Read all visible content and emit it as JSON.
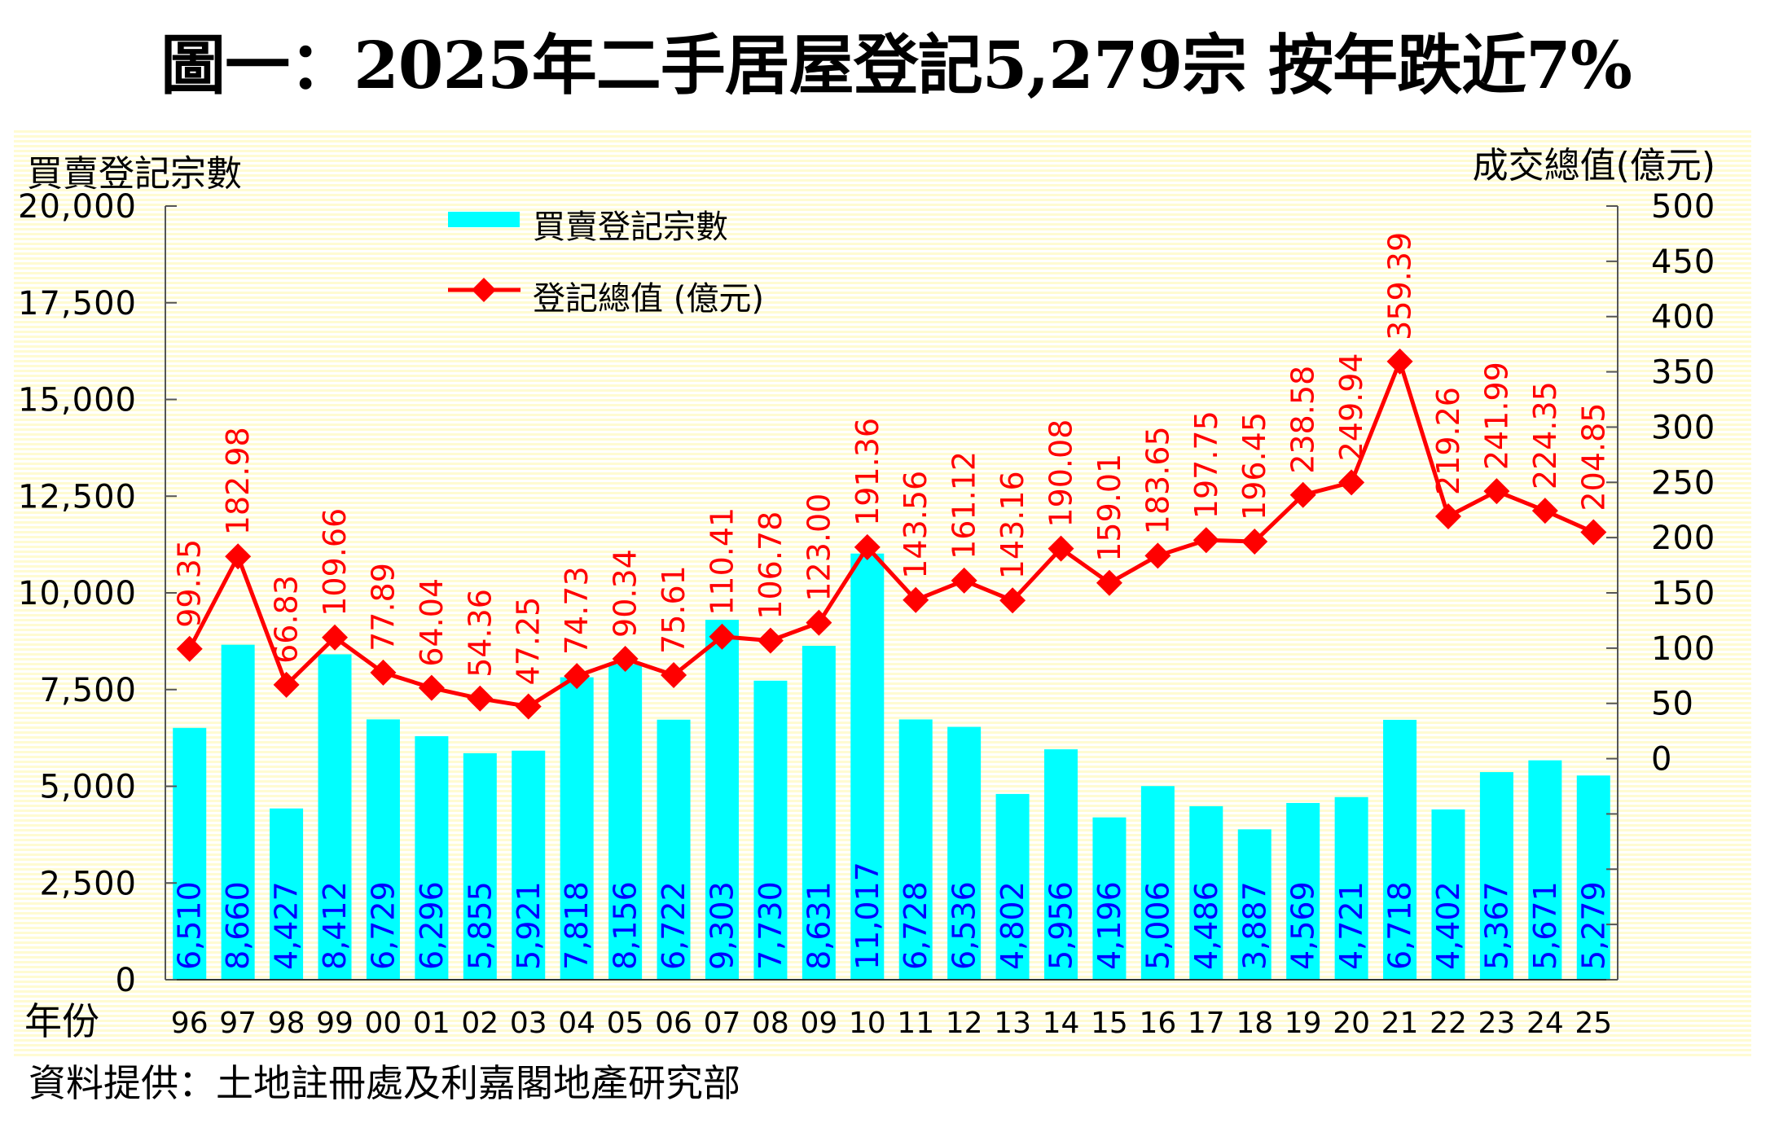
{
  "title": "圖一：2025年二手居屋登記5,279宗 按年跌近7%",
  "source": "資料提供：土地註冊處及利嘉閣地產研究部",
  "colors": {
    "bar": "#00ffff",
    "bar_label": "#0000ff",
    "line": "#ff0000",
    "axis": "#555555",
    "text": "#000000"
  },
  "chart_data": {
    "type": "bar+line",
    "title": "圖一：2025年二手居屋登記5,279宗 按年跌近7%",
    "xlabel": "年份",
    "ylabel_left": "買賣登記宗數",
    "ylabel_right": "成交總值(億元)",
    "categories": [
      "96",
      "97",
      "98",
      "99",
      "00",
      "01",
      "02",
      "03",
      "04",
      "05",
      "06",
      "07",
      "08",
      "09",
      "10",
      "11",
      "12",
      "13",
      "14",
      "15",
      "16",
      "17",
      "18",
      "19",
      "20",
      "21",
      "22",
      "23",
      "24",
      "25"
    ],
    "left_axis": {
      "ylim": [
        0,
        20000
      ],
      "ticks": [
        0,
        2500,
        5000,
        7500,
        10000,
        12500,
        15000,
        17500,
        20000
      ],
      "tick_labels": [
        "0",
        "2,500",
        "5,000",
        "7,500",
        "10,000",
        "12,500",
        "15,000",
        "17,500",
        "20,000"
      ]
    },
    "right_axis": {
      "ylim": [
        -200,
        500
      ],
      "ticks": [
        -200,
        -150,
        -100,
        -50,
        0,
        50,
        100,
        150,
        200,
        250,
        300,
        350,
        400,
        450,
        500
      ],
      "labeled_ticks": [
        0,
        50,
        100,
        150,
        200,
        250,
        300,
        350,
        400,
        450,
        500
      ],
      "tick_labels": [
        "0",
        "50",
        "100",
        "150",
        "200",
        "250",
        "300",
        "350",
        "400",
        "450",
        "500"
      ]
    },
    "legend_position": "top-left",
    "grid": false,
    "series": [
      {
        "name": "買賣登記宗數",
        "type": "bar",
        "axis": "left",
        "values": [
          6510,
          8660,
          4427,
          8412,
          6729,
          6296,
          5855,
          5921,
          7818,
          8156,
          6722,
          9303,
          7730,
          8631,
          11017,
          6728,
          6536,
          4802,
          5956,
          4196,
          5006,
          4486,
          3887,
          4569,
          4721,
          6718,
          4402,
          5367,
          5671,
          5279
        ],
        "labels": [
          "6,510",
          "8,660",
          "4,427",
          "8,412",
          "6,729",
          "6,296",
          "5,855",
          "5,921",
          "7,818",
          "8,156",
          "6,722",
          "9,303",
          "7,730",
          "8,631",
          "11,017",
          "6,728",
          "6,536",
          "4,802",
          "5,956",
          "4,196",
          "5,006",
          "4,486",
          "3,887",
          "4,569",
          "4,721",
          "6,718",
          "4,402",
          "5,367",
          "5,671",
          "5,279"
        ]
      },
      {
        "name": "登記總值 (億元)",
        "type": "line",
        "axis": "right",
        "values": [
          99.35,
          182.98,
          66.83,
          109.66,
          77.89,
          64.04,
          54.36,
          47.25,
          74.73,
          90.34,
          75.61,
          110.41,
          106.78,
          123.0,
          191.36,
          143.56,
          161.12,
          143.16,
          190.08,
          159.01,
          183.65,
          197.75,
          196.45,
          238.58,
          249.94,
          359.39,
          219.26,
          241.99,
          224.35,
          204.85
        ],
        "labels": [
          "99.35",
          "182.98",
          "66.83",
          "109.66",
          "77.89",
          "64.04",
          "54.36",
          "47.25",
          "74.73",
          "90.34",
          "75.61",
          "110.41",
          "106.78",
          "123.00",
          "191.36",
          "143.56",
          "161.12",
          "143.16",
          "190.08",
          "159.01",
          "183.65",
          "197.75",
          "196.45",
          "238.58",
          "249.94",
          "359.39",
          "219.26",
          "241.99",
          "224.35",
          "204.85"
        ]
      }
    ]
  }
}
